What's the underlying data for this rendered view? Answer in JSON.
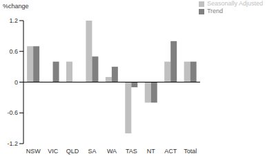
{
  "chart_data": {
    "type": "bar",
    "ylabel": "%change",
    "categories": [
      "NSW",
      "VIC",
      "QLD",
      "SA",
      "WA",
      "TAS",
      "NT",
      "ACT",
      "Total"
    ],
    "series": [
      {
        "name": "Seasonally Adjusted",
        "color": "#c0c0c0",
        "values": [
          0.7,
          0,
          0.4,
          1.2,
          0.1,
          -1.0,
          -0.4,
          0.4,
          0.4
        ]
      },
      {
        "name": "Trend",
        "color": "#808080",
        "values": [
          0.7,
          0.4,
          0,
          0.5,
          0.3,
          -0.1,
          -0.4,
          0.8,
          0.4
        ]
      }
    ],
    "ylim": [
      -1.2,
      1.2
    ],
    "yticks": [
      -1.2,
      -0.6,
      0,
      0.6,
      1.2
    ],
    "grid": false,
    "legend": "top-right"
  }
}
